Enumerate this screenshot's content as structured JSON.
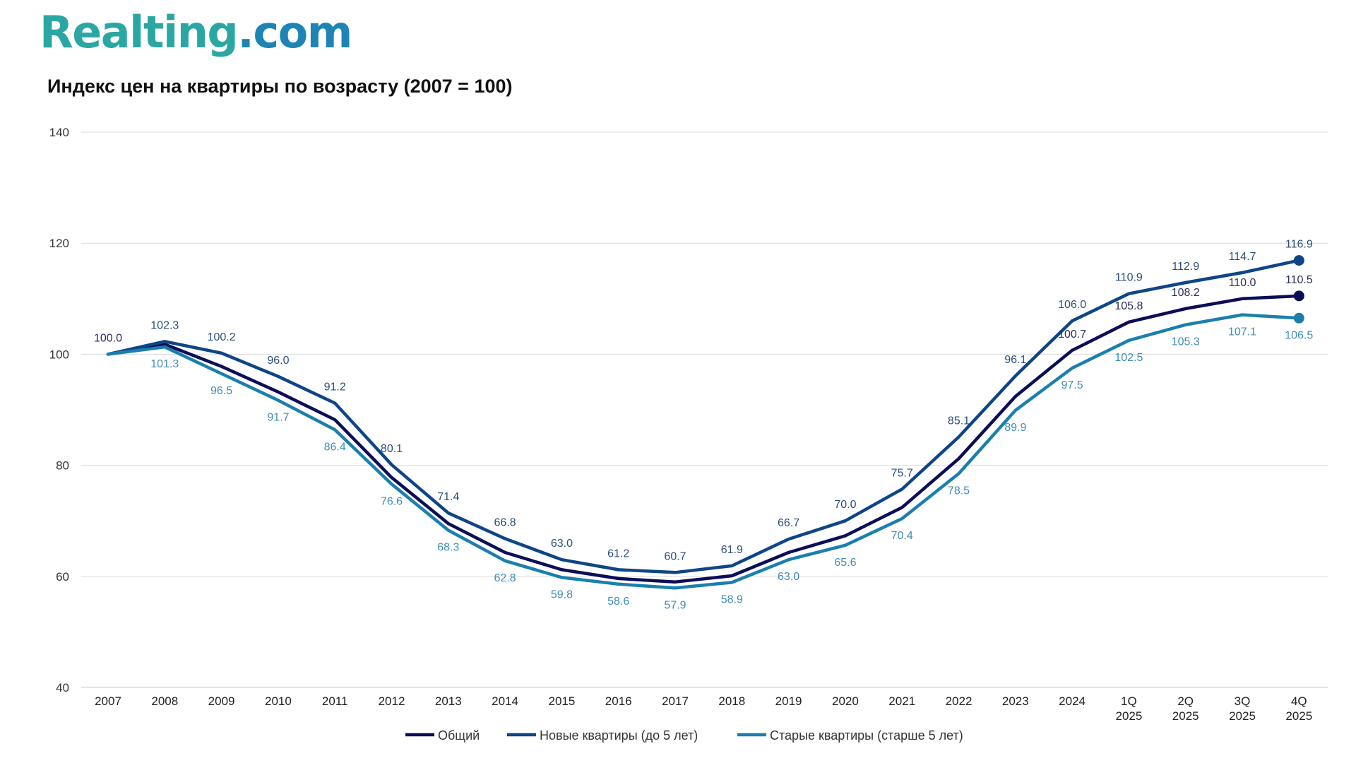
{
  "brand": {
    "part1": "Realting",
    "part2": ".com"
  },
  "chart_data": {
    "type": "line",
    "title": "Индекс цен на квартиры по возрасту (2007 = 100)",
    "xlabel": "",
    "ylabel": "",
    "ylim": [
      40,
      140
    ],
    "yticks": [
      40,
      60,
      80,
      100,
      120,
      140
    ],
    "grid": true,
    "legend_position": "bottom-center",
    "categories": [
      [
        "2007"
      ],
      [
        "2008"
      ],
      [
        "2009"
      ],
      [
        "2010"
      ],
      [
        "2011"
      ],
      [
        "2012"
      ],
      [
        "2013"
      ],
      [
        "2014"
      ],
      [
        "2015"
      ],
      [
        "2016"
      ],
      [
        "2017"
      ],
      [
        "2018"
      ],
      [
        "2019"
      ],
      [
        "2020"
      ],
      [
        "2021"
      ],
      [
        "2022"
      ],
      [
        "2023"
      ],
      [
        "2024"
      ],
      [
        "1Q",
        "2025"
      ],
      [
        "2Q",
        "2025"
      ],
      [
        "3Q",
        "2025"
      ],
      [
        "4Q",
        "2025"
      ]
    ],
    "series": [
      {
        "name": "Общий",
        "color": "#0b0d57",
        "label_color": "#2b2d5c",
        "values": [
          100.0,
          101.8,
          97.8,
          93.2,
          88.2,
          77.8,
          69.5,
          64.3,
          61.2,
          59.6,
          59.0,
          60.1,
          64.3,
          67.3,
          72.4,
          81.2,
          92.4,
          100.7,
          105.8,
          108.2,
          110.0,
          110.5
        ],
        "labels": [
          "100.0",
          null,
          null,
          null,
          null,
          null,
          null,
          null,
          null,
          null,
          null,
          null,
          null,
          null,
          null,
          null,
          null,
          "100.7",
          "105.8",
          "108.2",
          "110.0",
          "110.5"
        ],
        "label_side": "above",
        "end_marker": true
      },
      {
        "name": "Новые квартиры (до 5 лет)",
        "color": "#0e4586",
        "label_color": "#2b4e7a",
        "values": [
          100.0,
          102.3,
          100.2,
          96.0,
          91.2,
          80.1,
          71.4,
          66.8,
          63.0,
          61.2,
          60.7,
          61.9,
          66.7,
          70.0,
          75.7,
          85.1,
          96.1,
          106.0,
          110.9,
          112.9,
          114.7,
          116.9
        ],
        "labels": [
          null,
          "102.3",
          "100.2",
          "96.0",
          "91.2",
          "80.1",
          "71.4",
          "66.8",
          "63.0",
          "61.2",
          "60.7",
          "61.9",
          "66.7",
          "70.0",
          "75.7",
          "85.1",
          "96.1",
          "106.0",
          "110.9",
          "112.9",
          "114.7",
          "116.9"
        ],
        "label_side": "above",
        "end_marker": true
      },
      {
        "name": "Старые квартиры (старше 5 лет)",
        "color": "#1a7fad",
        "label_color": "#3f8db5",
        "values": [
          100.0,
          101.3,
          96.5,
          91.7,
          86.4,
          76.6,
          68.3,
          62.8,
          59.8,
          58.6,
          57.9,
          58.9,
          63.0,
          65.6,
          70.4,
          78.5,
          89.9,
          97.5,
          102.5,
          105.3,
          107.1,
          106.5
        ],
        "labels": [
          null,
          "101.3",
          "96.5",
          "91.7",
          "86.4",
          "76.6",
          "68.3",
          "62.8",
          "59.8",
          "58.6",
          "57.9",
          "58.9",
          "63.0",
          "65.6",
          "70.4",
          "78.5",
          "89.9",
          "97.5",
          "102.5",
          "105.3",
          "107.1",
          "106.5"
        ],
        "label_side": "below",
        "end_marker": true
      }
    ]
  }
}
